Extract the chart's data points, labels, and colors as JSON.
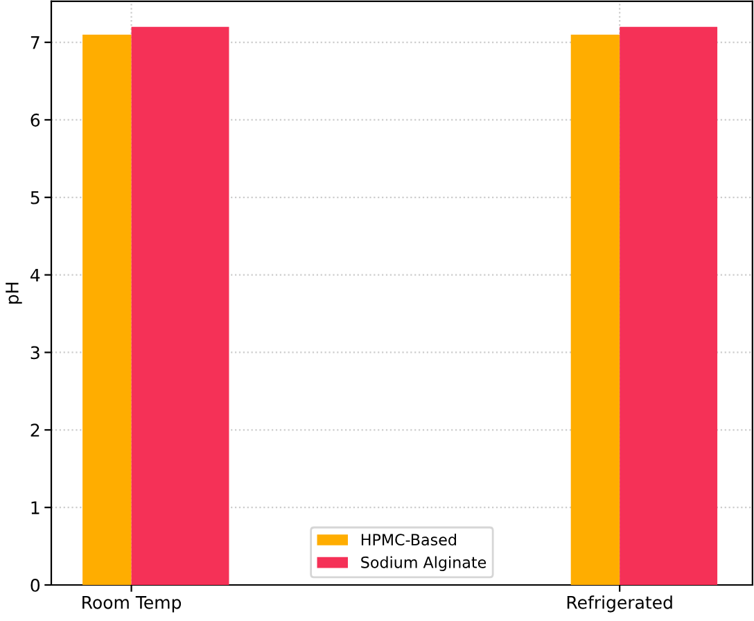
{
  "chart_data": {
    "type": "bar",
    "ylabel": "pH",
    "categories": [
      "Room Temp",
      "Refrigerated"
    ],
    "series": [
      {
        "name": "HPMC-Based",
        "color": "#ffad00",
        "values": [
          7.1,
          7.1
        ]
      },
      {
        "name": "Sodium Alginate",
        "color": "#f53157",
        "values": [
          7.2,
          7.2
        ]
      }
    ],
    "ylim": [
      0,
      7.53
    ],
    "yticks": [
      0,
      1,
      2,
      3,
      4,
      5,
      6,
      7
    ],
    "grid": true,
    "legend": "bottom"
  }
}
